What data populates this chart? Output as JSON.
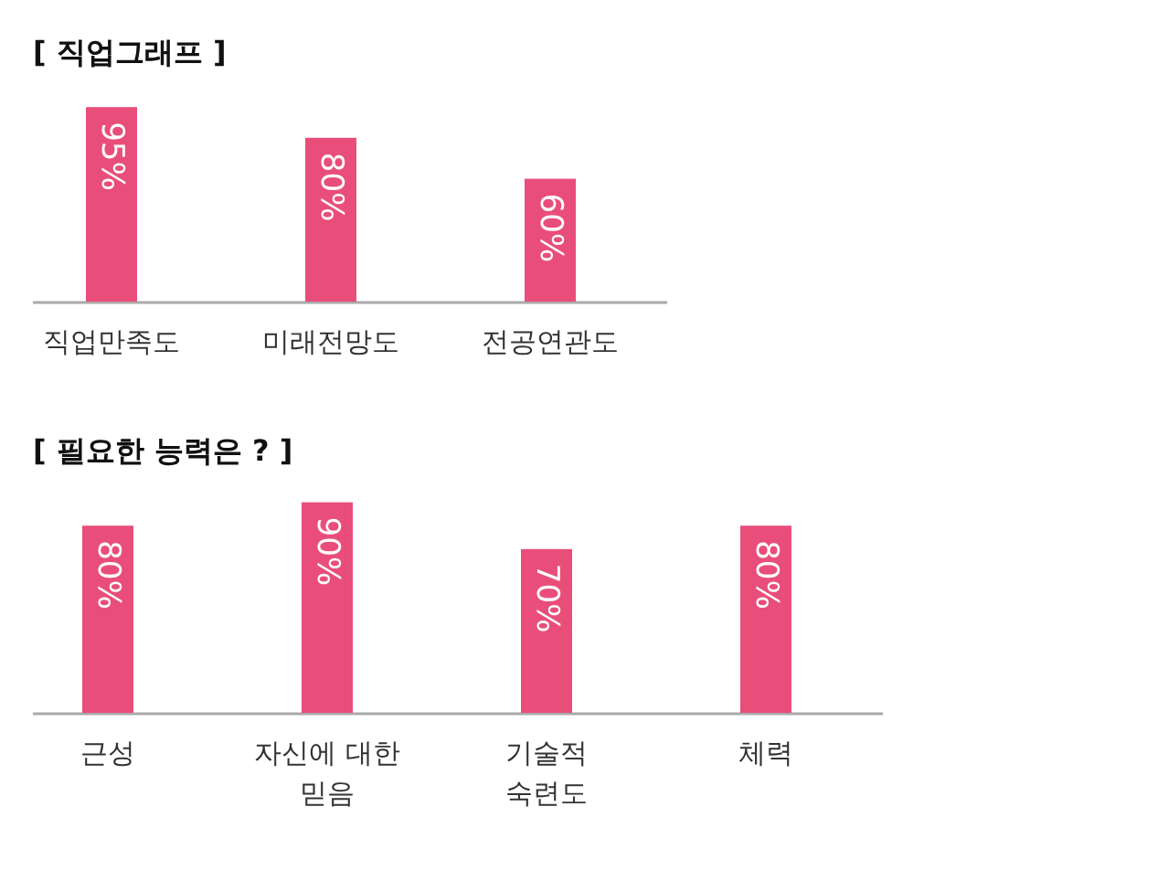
{
  "chart_data": [
    {
      "type": "bar",
      "title": "[  직업그래프  ]",
      "categories": [
        "직업만족도",
        "미래전망도",
        "전공연관도"
      ],
      "values": [
        95,
        80,
        60
      ],
      "value_labels": [
        "95%",
        "80%",
        "60%"
      ],
      "color": "#e94e7b"
    },
    {
      "type": "bar",
      "title": "[  필요한 능력은 ?  ]",
      "categories": [
        "근성",
        "자신에 대한\n믿음",
        "기술적\n숙련도",
        "체력"
      ],
      "values": [
        80,
        90,
        70,
        80
      ],
      "value_labels": [
        "80%",
        "90%",
        "70%",
        "80%"
      ],
      "color": "#e94e7b"
    }
  ]
}
